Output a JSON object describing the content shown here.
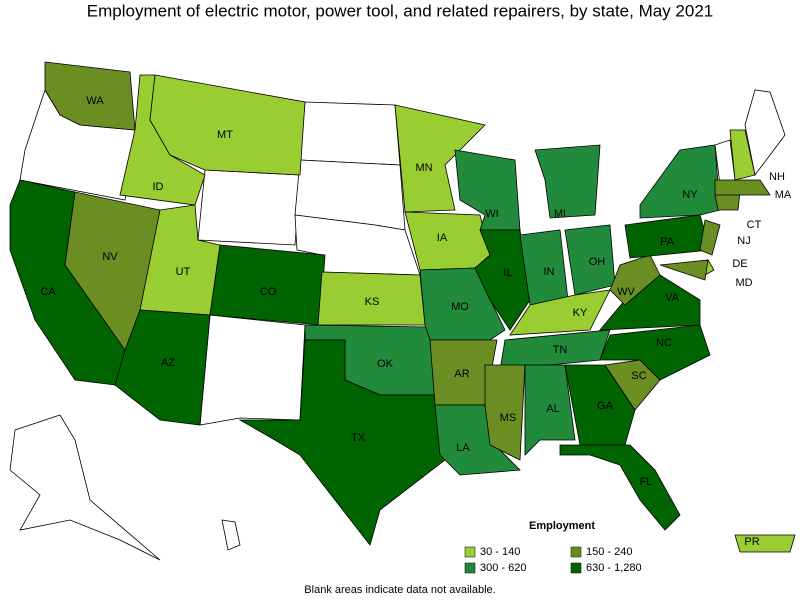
{
  "header": {
    "title": "Employment of electric motor, power tool, and related repairers, by state, May 2021"
  },
  "legend": {
    "title": "Employment",
    "items": [
      {
        "label": "30 - 140",
        "color": "#9acd32"
      },
      {
        "label": "150 - 240",
        "color": "#6b8e23"
      },
      {
        "label": "300 - 620",
        "color": "#228b3b"
      },
      {
        "label": "630 - 1,280",
        "color": "#006400"
      }
    ]
  },
  "states": [
    {
      "label": "WA",
      "color": "#6b8e23"
    },
    {
      "label": "CA",
      "color": "#006400"
    },
    {
      "label": "NV",
      "color": "#6b8e23"
    },
    {
      "label": "ID",
      "color": "#9acd32"
    },
    {
      "label": "MT",
      "color": "#9acd32"
    },
    {
      "label": "UT",
      "color": "#9acd32"
    },
    {
      "label": "CO",
      "color": "#006400"
    },
    {
      "label": "AZ",
      "color": "#006400"
    },
    {
      "label": "KS",
      "color": "#9acd32"
    },
    {
      "label": "OK",
      "color": "#228b3b"
    },
    {
      "label": "TX",
      "color": "#006400"
    },
    {
      "label": "MN",
      "color": "#9acd32"
    },
    {
      "label": "IA",
      "color": "#9acd32"
    },
    {
      "label": "MO",
      "color": "#228b3b"
    },
    {
      "label": "AR",
      "color": "#6b8e23"
    },
    {
      "label": "LA",
      "color": "#228b3b"
    },
    {
      "label": "WI",
      "color": "#228b3b"
    },
    {
      "label": "IL",
      "color": "#006400"
    },
    {
      "label": "MI",
      "color": "#228b3b"
    },
    {
      "label": "IN",
      "color": "#228b3b"
    },
    {
      "label": "OH",
      "color": "#228b3b"
    },
    {
      "label": "KY",
      "color": "#9acd32"
    },
    {
      "label": "TN",
      "color": "#228b3b"
    },
    {
      "label": "MS",
      "color": "#6b8e23"
    },
    {
      "label": "AL",
      "color": "#228b3b"
    },
    {
      "label": "GA",
      "color": "#006400"
    },
    {
      "label": "FL",
      "color": "#006400"
    },
    {
      "label": "SC",
      "color": "#6b8e23"
    },
    {
      "label": "NC",
      "color": "#006400"
    },
    {
      "label": "VA",
      "color": "#006400"
    },
    {
      "label": "WV",
      "color": "#6b8e23"
    },
    {
      "label": "PA",
      "color": "#006400"
    },
    {
      "label": "NY",
      "color": "#228b3b"
    },
    {
      "label": "NJ",
      "color": "#6b8e23"
    },
    {
      "label": "DE",
      "color": "#9acd32"
    },
    {
      "label": "MD",
      "color": "#6b8e23"
    },
    {
      "label": "CT",
      "color": "#6b8e23"
    },
    {
      "label": "MA",
      "color": "#6b8e23"
    },
    {
      "label": "NH",
      "color": "#9acd32"
    },
    {
      "label": "PR",
      "color": "#9acd32"
    }
  ],
  "footer": {
    "note": "Blank areas indicate data not available."
  }
}
